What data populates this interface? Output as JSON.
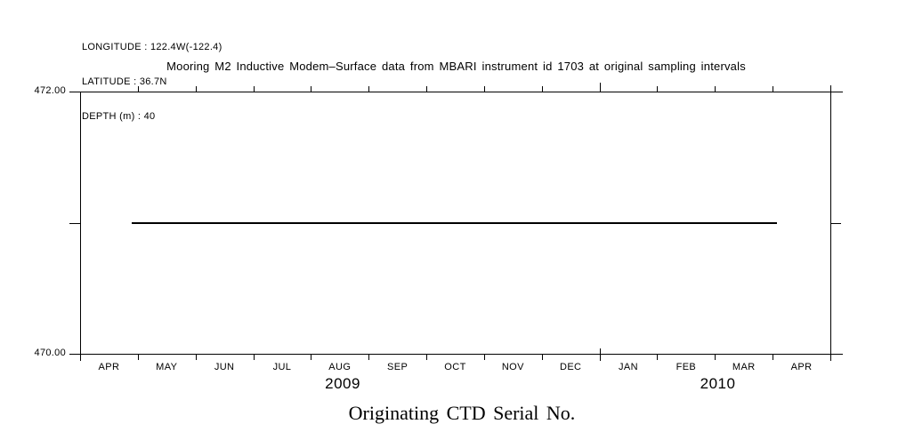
{
  "colors": {
    "ink": "#000000",
    "background": "#ffffff"
  },
  "header": {
    "longitude": "LONGITUDE : 122.4W(-122.4)",
    "latitude": "LATITUDE : 36.7N",
    "depth": "DEPTH (m) : 40"
  },
  "chart_data": {
    "type": "line",
    "title": "Mooring M2 Inductive Modem–Surface data from MBARI instrument id 1703 at original sampling intervals",
    "bottom_title": "Originating CTD Serial No.",
    "xlabel": "",
    "ylabel": "",
    "grid": false,
    "legend": false,
    "x_axis": {
      "start_month": "2009-04",
      "months": [
        "APR",
        "MAY",
        "JUN",
        "JUL",
        "AUG",
        "SEP",
        "OCT",
        "NOV",
        "DEC",
        "JAN",
        "FEB",
        "MAR",
        "APR"
      ],
      "year_labels": [
        {
          "label": "2009",
          "at_month_index": 4.55
        },
        {
          "label": "2010",
          "at_month_index": 11.05
        }
      ],
      "year_boundary_tick_index": 9
    },
    "y_axis": {
      "range": [
        470,
        472
      ],
      "ticks": [
        {
          "value": 472,
          "label": "472.00"
        },
        {
          "value": 471,
          "label": ""
        },
        {
          "value": 470,
          "label": "470.00"
        }
      ]
    },
    "series": [
      {
        "name": "Originating CTD Serial No.",
        "color": "#000000",
        "constant_value": 471,
        "points": [
          {
            "date": "2009-04-28",
            "value": 471
          },
          {
            "date": "2010-04-03",
            "value": 471
          }
        ]
      }
    ]
  }
}
